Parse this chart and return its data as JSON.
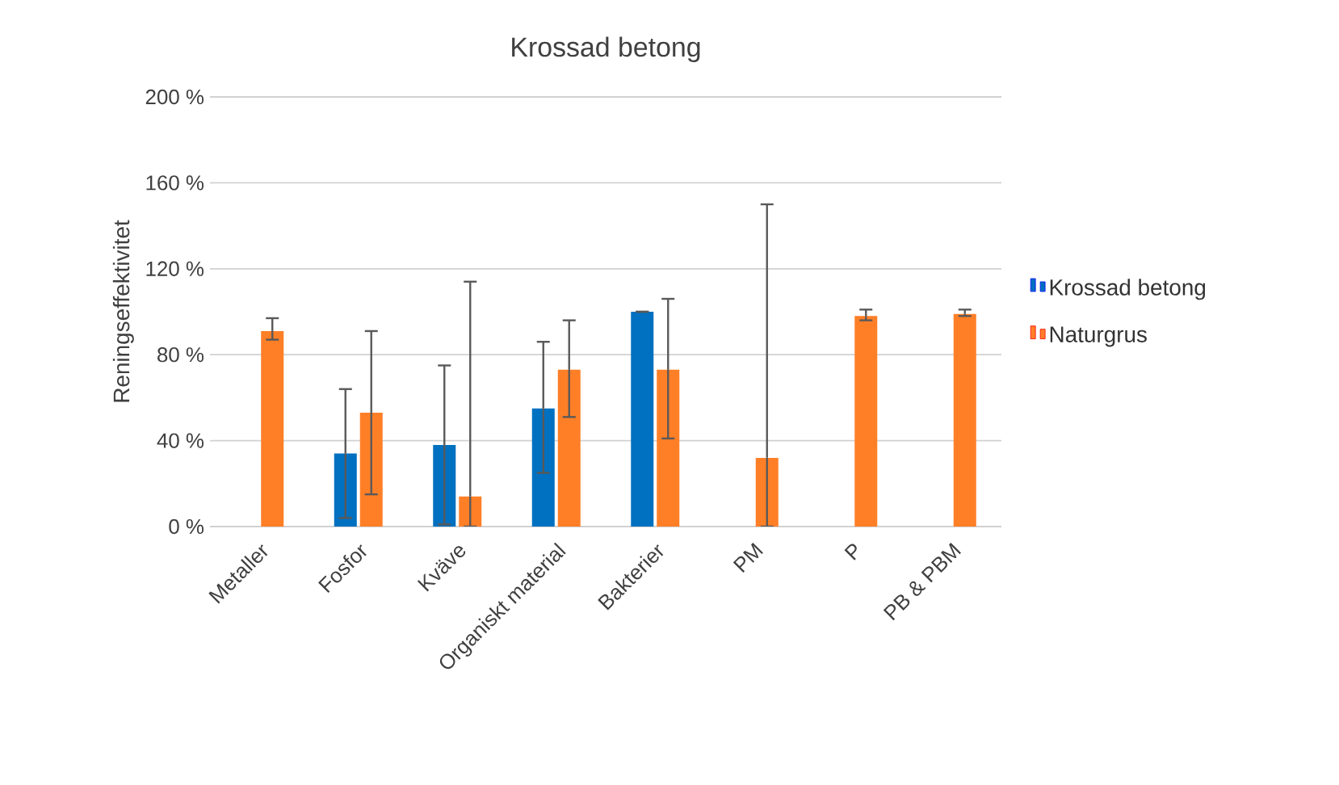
{
  "chart_data": {
    "type": "bar",
    "title": "Krossad betong",
    "ylabel": "Reningseffektivitet",
    "categories": [
      "Metaller",
      "Fosfor",
      "Kväve",
      "Organiskt material",
      "Bakterier",
      "PM",
      "P",
      "PB & PBM"
    ],
    "series": [
      {
        "name": "Krossad betong",
        "color": "#0070c0",
        "values": [
          null,
          34,
          38,
          55,
          100,
          null,
          null,
          null
        ],
        "errors": [
          null,
          [
            4,
            64
          ],
          [
            1,
            75
          ],
          [
            25,
            86
          ],
          [
            100,
            100
          ],
          null,
          null,
          null
        ]
      },
      {
        "name": "Naturgrus",
        "color": "#ff7f27",
        "values": [
          91,
          53,
          14,
          73,
          73,
          32,
          98,
          99
        ],
        "errors": [
          [
            87,
            97
          ],
          [
            15,
            91
          ],
          [
            0,
            114
          ],
          [
            51,
            96
          ],
          [
            41,
            106
          ],
          [
            0,
            150
          ],
          [
            96,
            101
          ],
          [
            98,
            101
          ]
        ]
      }
    ],
    "ylim": [
      0,
      200
    ],
    "yticks": [
      {
        "value": 0,
        "label": "0 %"
      },
      {
        "value": 40,
        "label": "40 %"
      },
      {
        "value": 80,
        "label": "80 %"
      },
      {
        "value": 120,
        "label": "120 %"
      },
      {
        "value": 160,
        "label": "160 %"
      },
      {
        "value": 200,
        "label": "200 %"
      }
    ],
    "grid": "y",
    "legend": "right"
  }
}
